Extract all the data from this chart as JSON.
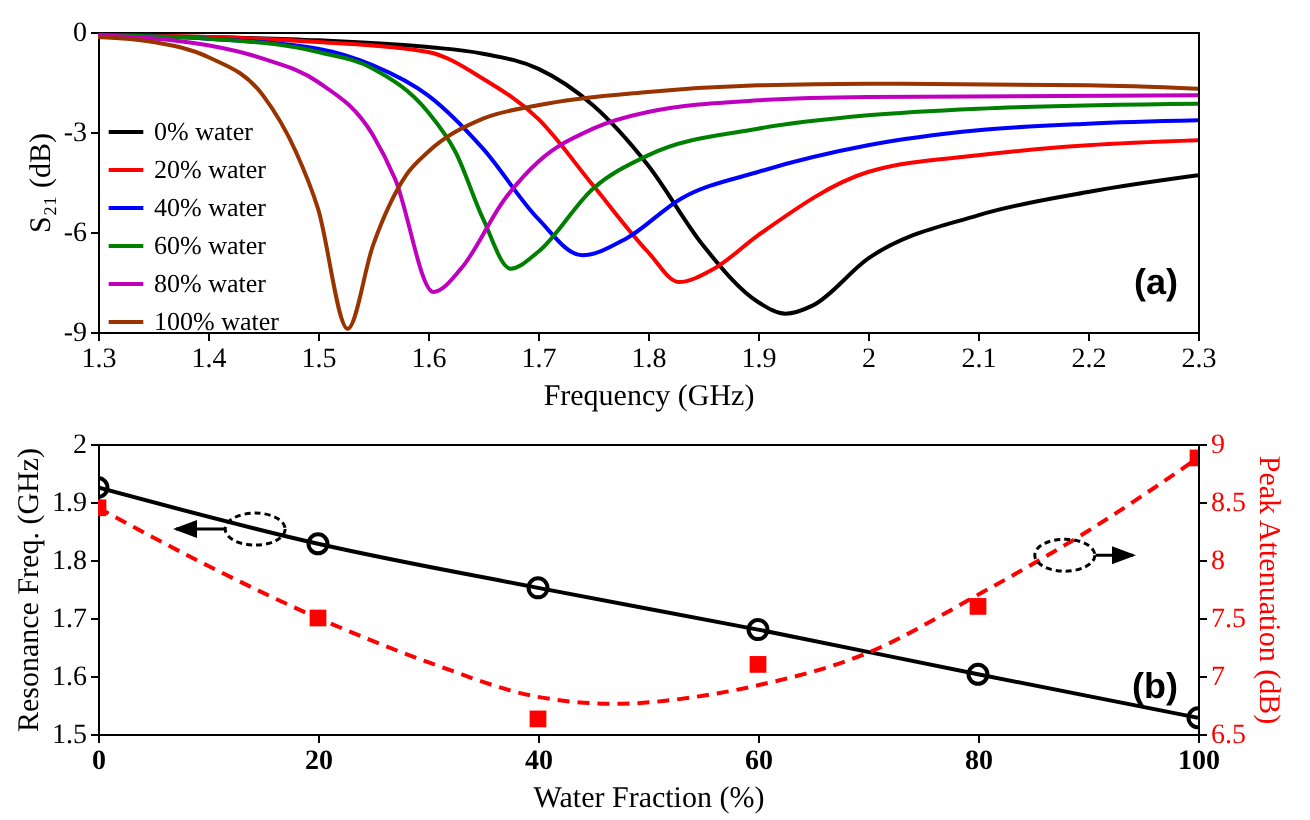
{
  "chart_data": [
    {
      "type": "line",
      "xlabel": "Frequency (GHz)",
      "ylabel": "S₂₁ (dB)",
      "xlim": [
        1.3,
        2.3
      ],
      "ylim": [
        -9,
        0
      ],
      "xticks": [
        1.3,
        1.4,
        1.5,
        1.6,
        1.7,
        1.8,
        1.9,
        2,
        2.1,
        2.2,
        2.3
      ],
      "yticks": [
        -9,
        -6,
        -3,
        0
      ],
      "grid": false,
      "legend": "bottom left",
      "annotations": [
        "(a)"
      ],
      "series": [
        {
          "name": "0% water",
          "color": "#000000",
          "x": [
            1.3,
            1.4,
            1.5,
            1.6,
            1.65,
            1.7,
            1.75,
            1.8,
            1.85,
            1.9,
            1.925,
            1.95,
            2.0,
            2.1,
            2.2,
            2.3
          ],
          "values": [
            -0.1,
            -0.15,
            -0.25,
            -0.45,
            -0.65,
            -1.1,
            -2.2,
            -4.0,
            -6.4,
            -8.1,
            -8.45,
            -8.2,
            -6.8,
            -5.5,
            -4.8,
            -4.3
          ]
        },
        {
          "name": "20% water",
          "color": "#ff0000",
          "x": [
            1.3,
            1.4,
            1.5,
            1.6,
            1.65,
            1.7,
            1.75,
            1.8,
            1.828,
            1.86,
            1.9,
            2.0,
            2.1,
            2.2,
            2.3
          ],
          "values": [
            -0.1,
            -0.15,
            -0.3,
            -0.6,
            -1.4,
            -2.6,
            -4.6,
            -6.6,
            -7.5,
            -7.1,
            -6.1,
            -4.2,
            -3.7,
            -3.4,
            -3.25
          ]
        },
        {
          "name": "40% water",
          "color": "#0000ff",
          "x": [
            1.3,
            1.4,
            1.5,
            1.55,
            1.6,
            1.65,
            1.7,
            1.74,
            1.78,
            1.83,
            1.9,
            2.0,
            2.1,
            2.2,
            2.3
          ],
          "values": [
            -0.1,
            -0.2,
            -0.5,
            -1.0,
            -1.9,
            -3.5,
            -5.6,
            -6.7,
            -6.2,
            -5.0,
            -4.2,
            -3.4,
            -2.95,
            -2.75,
            -2.65
          ]
        },
        {
          "name": "60% water",
          "color": "#008000",
          "x": [
            1.3,
            1.4,
            1.5,
            1.55,
            1.6,
            1.625,
            1.65,
            1.675,
            1.7,
            1.75,
            1.8,
            1.9,
            2.0,
            2.1,
            2.3
          ],
          "values": [
            -0.1,
            -0.2,
            -0.6,
            -1.1,
            -2.4,
            -3.6,
            -5.6,
            -7.1,
            -6.6,
            -4.7,
            -3.7,
            -2.9,
            -2.5,
            -2.3,
            -2.15
          ]
        },
        {
          "name": "80% water",
          "color": "#bf00bf",
          "x": [
            1.3,
            1.4,
            1.45,
            1.5,
            1.55,
            1.57,
            1.605,
            1.63,
            1.67,
            1.7,
            1.75,
            1.8,
            1.9,
            2.0,
            2.3
          ],
          "values": [
            -0.1,
            -0.4,
            -0.8,
            -1.5,
            -3.1,
            -4.4,
            -7.8,
            -7.1,
            -5.0,
            -3.9,
            -2.9,
            -2.4,
            -2.05,
            -1.95,
            -1.9
          ]
        },
        {
          "name": "100% water",
          "color": "#993300",
          "x": [
            1.3,
            1.35,
            1.4,
            1.45,
            1.48,
            1.5,
            1.527,
            1.55,
            1.58,
            1.6,
            1.65,
            1.7,
            1.8,
            1.9,
            2.0,
            2.2,
            2.3
          ],
          "values": [
            -0.15,
            -0.3,
            -0.75,
            -1.9,
            -3.6,
            -5.3,
            -8.9,
            -6.4,
            -4.3,
            -3.6,
            -2.6,
            -2.2,
            -1.8,
            -1.6,
            -1.55,
            -1.6,
            -1.7
          ]
        }
      ]
    },
    {
      "type": "line",
      "xlabel": "Water Fraction (%)",
      "ylabel": "Resonance Freq. (GHz)",
      "y2label": "Peak Attenuation (dB)",
      "xlim": [
        0,
        100
      ],
      "ylim": [
        1.5,
        2
      ],
      "y2lim": [
        6.5,
        9
      ],
      "xticks": [
        0,
        20,
        40,
        60,
        80,
        100
      ],
      "yticks": [
        1.5,
        1.6,
        1.7,
        1.8,
        1.9,
        2
      ],
      "y2ticks": [
        6.5,
        7,
        7.5,
        8,
        8.5,
        9
      ],
      "grid": false,
      "legend": false,
      "annotations": [
        "(b)"
      ],
      "series": [
        {
          "type": "line",
          "color": "#000000",
          "marker": "circle",
          "x": [
            0,
            20,
            40,
            60,
            80,
            100
          ],
          "values": [
            1.925,
            1.828,
            1.752,
            1.68,
            1.603,
            1.528
          ]
        },
        {
          "type": "scatter",
          "axis": "y2",
          "color": "#ff0000",
          "marker": "square",
          "x": [
            0,
            20,
            40,
            60,
            80,
            100
          ],
          "values": [
            8.45,
            7.5,
            6.63,
            7.1,
            7.6,
            8.88
          ]
        },
        {
          "type": "line",
          "axis": "y2",
          "color": "#ff0000",
          "line_style": "dashed",
          "x": [
            0,
            10,
            20,
            30,
            40,
            47,
            55,
            60,
            70,
            80,
            90,
            100
          ],
          "values": [
            8.45,
            7.95,
            7.5,
            7.12,
            6.82,
            6.76,
            6.83,
            6.92,
            7.2,
            7.7,
            8.25,
            8.88
          ]
        }
      ]
    }
  ]
}
